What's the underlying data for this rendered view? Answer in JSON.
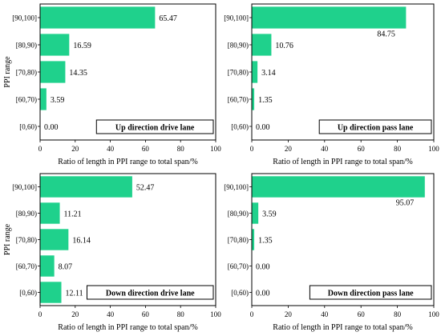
{
  "figure": {
    "ylabel": "PPI range"
  },
  "chart_data": [
    {
      "type": "bar",
      "orientation": "horizontal",
      "title": "Up direction drive lane",
      "categories": [
        "[90,100]",
        "[80,90)",
        "[70,80)",
        "[60,70)",
        "[0,60)"
      ],
      "values": [
        65.47,
        16.59,
        14.35,
        3.59,
        0.0
      ],
      "value_labels": [
        "65.47",
        "16.59",
        "14.35",
        "3.59",
        "0.00"
      ],
      "xlabel": "Ratio of  length in PPI range to total span/%",
      "ylabel": "PPI range",
      "xlim": [
        0,
        100
      ],
      "xticks": [
        0,
        20,
        40,
        60,
        80,
        100
      ],
      "bar_color": "#1fd18c",
      "grid": false
    },
    {
      "type": "bar",
      "orientation": "horizontal",
      "title": "Up direction pass lane",
      "categories": [
        "[90,100]",
        "[80,90)",
        "[70,80)",
        "[60,70)",
        "[0,60)"
      ],
      "values": [
        84.75,
        10.76,
        3.14,
        1.35,
        0.0
      ],
      "value_labels": [
        "84.75",
        "10.76",
        "3.14",
        "1.35",
        "0.00"
      ],
      "xlabel": "Ratio of  length in PPI range to total span/%",
      "xlim": [
        0,
        100
      ],
      "xticks": [
        0,
        20,
        40,
        60,
        80,
        100
      ],
      "bar_color": "#1fd18c",
      "grid": false
    },
    {
      "type": "bar",
      "orientation": "horizontal",
      "title": "Down direction drive lane",
      "categories": [
        "[90,100]",
        "[80,90)",
        "[70,80)",
        "[60,70)",
        "[0,60)"
      ],
      "values": [
        52.47,
        11.21,
        16.14,
        8.07,
        12.11
      ],
      "value_labels": [
        "52.47",
        "11.21",
        "16.14",
        "8.07",
        "12.11"
      ],
      "xlabel": "Ratio of  length in PPI range to total span/%",
      "ylabel": "PPI range",
      "xlim": [
        0,
        100
      ],
      "xticks": [
        0,
        20,
        40,
        60,
        80,
        100
      ],
      "bar_color": "#1fd18c",
      "grid": false
    },
    {
      "type": "bar",
      "orientation": "horizontal",
      "title": "Down direction pass lane",
      "categories": [
        "[90,100]",
        "[80,90)",
        "[70,80)",
        "[60,70)",
        "[0,60)"
      ],
      "values": [
        95.07,
        3.59,
        1.35,
        0.0,
        0.0
      ],
      "value_labels": [
        "95.07",
        "3.59",
        "1.35",
        "0.00",
        "0.00"
      ],
      "xlabel": "Ratio of  length in PPI range to total span/%",
      "xlim": [
        0,
        100
      ],
      "xticks": [
        0,
        20,
        40,
        60,
        80,
        100
      ],
      "bar_color": "#1fd18c",
      "grid": false
    }
  ]
}
